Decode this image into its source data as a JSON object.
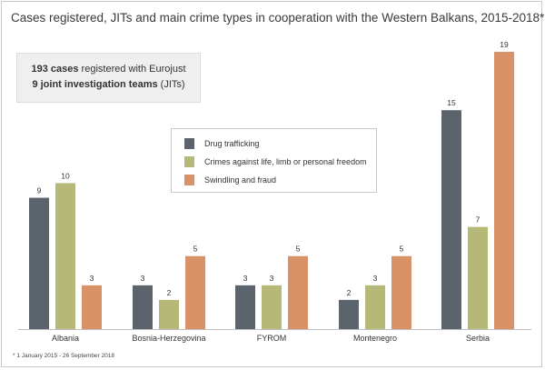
{
  "title": "Cases registered, JITs and main crime types in cooperation with the Western Balkans, 2015-2018*",
  "summary": {
    "cases_bold": "193 cases",
    "cases_rest": " registered with Eurojust",
    "jits_bold": "9 joint investigation teams",
    "jits_rest": " (JITs)"
  },
  "footnote": "* 1 January 2015 - 26 September 2018",
  "chart_data": {
    "type": "bar",
    "title": "Cases registered, JITs and main crime types in cooperation with the Western Balkans, 2015-2018*",
    "xlabel": "",
    "ylabel": "",
    "grid": false,
    "legend_position": "top-center",
    "categories": [
      "Albania",
      "Bosnia-Herzegovina",
      "FYROM",
      "Montenegro",
      "Serbia"
    ],
    "series": [
      {
        "name": "Drug trafficking",
        "color": "#5b646d",
        "values": [
          9,
          3,
          3,
          2,
          15
        ]
      },
      {
        "name": "Crimes against life, limb or personal freedom",
        "color": "#b5b876",
        "values": [
          10,
          2,
          3,
          3,
          7
        ]
      },
      {
        "name": "Swindling and fraud",
        "color": "#d99168",
        "values": [
          3,
          5,
          5,
          5,
          19
        ]
      }
    ],
    "ylim": [
      0,
      19
    ]
  }
}
